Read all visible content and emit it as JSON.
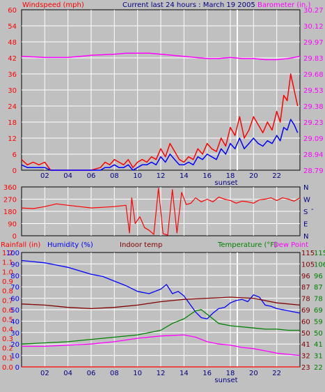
{
  "panels": {
    "wind": {
      "title_left": "Windspeed (mph)",
      "title_center": "Current last 24 hours : March 19 2005",
      "title_right": "Barometer (in.)",
      "left_ticks": [
        "0",
        "6",
        "12",
        "18",
        "24",
        "30",
        "36",
        "42",
        "48",
        "54",
        "60"
      ],
      "right_ticks": [
        "28.79",
        "28.94",
        "29.09",
        "29.23",
        "29.38",
        "29.53",
        "29.68",
        "29.83",
        "29.97",
        "30.12",
        "30.27"
      ],
      "x_ticks": [
        "02",
        "04",
        "06",
        "08",
        "10",
        "12",
        "14",
        "16",
        "18",
        "20",
        "22"
      ],
      "sunset_label": "sunset"
    },
    "direction": {
      "left_ticks": [
        "0",
        "90",
        "180",
        "270",
        "360"
      ],
      "right_labels": [
        "N",
        "E",
        "S",
        "W",
        "N"
      ],
      "dash": "-"
    },
    "temp": {
      "title_rain": "Rainfall (in)",
      "title_humidity": "Humidity (%)",
      "title_indoor": "Indoor temp",
      "title_temp": "Temperature (°F)",
      "title_dew": "Dew Point",
      "rain_ticks": [
        "0.0",
        "0.1",
        "0.2",
        "0.3",
        "0.4",
        "0.5",
        "0.6",
        "0.7",
        "0.8",
        "0.9",
        "1.0",
        "1.1",
        "1.2"
      ],
      "hum_ticks": [
        "0",
        "10",
        "20",
        "30",
        "40",
        "50",
        "60",
        "70",
        "80",
        "90",
        "100"
      ],
      "temp_ticks_a": [
        "23",
        "32",
        "41",
        "50",
        "60",
        "69",
        "78",
        "87",
        "96",
        "105",
        "115"
      ],
      "temp_ticks_b": [
        "22",
        "31",
        "41",
        "50",
        "59",
        "69",
        "78",
        "87",
        "96",
        "106",
        "115"
      ],
      "x_ticks": [
        "02",
        "04",
        "06",
        "08",
        "10",
        "12",
        "14",
        "16",
        "18",
        "20",
        "22"
      ],
      "sunset_label": "sunset"
    }
  },
  "colors": {
    "wind_gust": "#ff0000",
    "wind_avg": "#0000ff",
    "barometer": "#ff00ff",
    "direction": "#ff0000",
    "humidity": "#0000ff",
    "indoor": "#800000",
    "temperature": "#008000",
    "dewpoint": "#ff00ff",
    "rain": "#ff0000",
    "grid": "#ffffff",
    "bg": "#c0c0c0"
  },
  "chart_data": [
    {
      "type": "line",
      "x_label": "hour",
      "xlim": [
        0,
        24
      ],
      "ylim": [
        0,
        60
      ],
      "y2lim": [
        28.79,
        30.27
      ],
      "series": [
        {
          "axis": "left",
          "color_key": "wind_gust",
          "x": [
            0,
            0.5,
            1,
            1.5,
            2,
            2.5,
            3,
            4,
            5,
            6,
            6.8,
            7.2,
            7.6,
            8,
            8.4,
            8.8,
            9.2,
            9.6,
            10,
            10.4,
            10.8,
            11.2,
            11.6,
            12,
            12.4,
            12.8,
            13.2,
            13.6,
            14,
            14.4,
            14.8,
            15.2,
            15.6,
            16,
            16.4,
            16.8,
            17.2,
            17.6,
            18,
            18.4,
            18.8,
            19.2,
            19.6,
            20,
            20.4,
            20.8,
            21.2,
            21.6,
            22,
            22.3,
            22.6,
            22.9,
            23.2,
            23.5,
            23.8
          ],
          "y": [
            4,
            2,
            3,
            2,
            3,
            0,
            0,
            0,
            0,
            0,
            1,
            3,
            2,
            4,
            3,
            2,
            4,
            1,
            3,
            4,
            3,
            5,
            4,
            8,
            5,
            10,
            7,
            4,
            3,
            5,
            4,
            8,
            6,
            10,
            8,
            7,
            12,
            9,
            16,
            13,
            20,
            12,
            15,
            20,
            17,
            14,
            18,
            15,
            22,
            18,
            28,
            26,
            36,
            30,
            24
          ]
        },
        {
          "axis": "left",
          "color_key": "wind_avg",
          "x": [
            0,
            0.5,
            1,
            1.5,
            2,
            2.5,
            3,
            4,
            5,
            6,
            6.8,
            7.2,
            7.6,
            8,
            8.4,
            8.8,
            9.2,
            9.6,
            10,
            10.4,
            10.8,
            11.2,
            11.6,
            12,
            12.4,
            12.8,
            13.2,
            13.6,
            14,
            14.4,
            14.8,
            15.2,
            15.6,
            16,
            16.4,
            16.8,
            17.2,
            17.6,
            18,
            18.4,
            18.8,
            19.2,
            19.6,
            20,
            20.4,
            20.8,
            21.2,
            21.6,
            22,
            22.3,
            22.6,
            22.9,
            23.2,
            23.5,
            23.8
          ],
          "y": [
            2,
            1,
            1,
            1,
            1,
            0,
            0,
            0,
            0,
            0,
            0,
            1,
            1,
            2,
            1,
            1,
            2,
            0,
            1,
            2,
            2,
            3,
            2,
            5,
            3,
            6,
            4,
            2,
            2,
            3,
            2,
            5,
            4,
            6,
            5,
            4,
            8,
            6,
            10,
            8,
            12,
            8,
            10,
            12,
            10,
            9,
            11,
            10,
            13,
            11,
            16,
            15,
            19,
            17,
            14
          ]
        },
        {
          "axis": "right",
          "color_key": "barometer",
          "x": [
            0,
            2,
            4,
            6,
            8,
            9,
            10,
            11,
            12,
            13,
            14,
            15,
            16,
            17,
            18,
            19,
            20,
            21,
            22,
            23,
            24
          ],
          "y": [
            29.84,
            29.83,
            29.83,
            29.85,
            29.86,
            29.87,
            29.87,
            29.87,
            29.86,
            29.85,
            29.84,
            29.83,
            29.82,
            29.82,
            29.83,
            29.82,
            29.82,
            29.81,
            29.81,
            29.82,
            29.84
          ]
        }
      ]
    },
    {
      "type": "line",
      "x_label": "hour",
      "xlim": [
        0,
        24
      ],
      "ylim": [
        0,
        360
      ],
      "series": [
        {
          "color_key": "direction",
          "x": [
            0,
            1,
            2,
            3,
            4,
            5,
            6,
            7,
            8,
            9,
            9.3,
            9.5,
            9.8,
            10.2,
            10.6,
            11,
            11.4,
            11.8,
            12.2,
            12.6,
            13,
            13.4,
            13.8,
            14.2,
            14.6,
            15,
            15.5,
            16,
            16.5,
            17,
            17.5,
            18,
            18.5,
            19,
            19.5,
            20,
            20.5,
            21,
            21.5,
            22,
            22.5,
            23,
            23.5,
            24
          ],
          "y": [
            205,
            200,
            215,
            235,
            225,
            215,
            205,
            210,
            215,
            225,
            20,
            280,
            90,
            140,
            60,
            40,
            10,
            350,
            15,
            5,
            340,
            20,
            320,
            230,
            240,
            280,
            250,
            270,
            250,
            285,
            270,
            260,
            240,
            255,
            250,
            240,
            265,
            270,
            280,
            260,
            280,
            270,
            255,
            280
          ]
        }
      ]
    },
    {
      "type": "line",
      "x_label": "hour",
      "xlim": [
        0,
        24
      ],
      "ylim": [
        0,
        100
      ],
      "y_rain_lim": [
        0.0,
        1.2
      ],
      "y_temp_lim": [
        23,
        115
      ],
      "series": [
        {
          "axis": "humidity",
          "color_key": "humidity",
          "x": [
            0,
            1,
            2,
            3,
            4,
            5,
            6,
            7,
            8,
            9,
            10,
            11,
            12,
            12.5,
            13,
            13.5,
            14,
            14.5,
            15,
            15.5,
            16,
            16.5,
            17,
            17.5,
            18,
            18.5,
            19,
            19.5,
            20,
            20.5,
            21,
            21.5,
            22,
            23,
            24
          ],
          "y": [
            93,
            92,
            91,
            89,
            87,
            84,
            81,
            79,
            75,
            71,
            66,
            64,
            68,
            72,
            64,
            66,
            62,
            55,
            48,
            43,
            42,
            47,
            51,
            52,
            56,
            58,
            59,
            57,
            63,
            61,
            54,
            53,
            51,
            49,
            47
          ]
        },
        {
          "axis": "humidity",
          "color_key": "indoor",
          "x": [
            0,
            2,
            4,
            6,
            8,
            10,
            12,
            14,
            16,
            18,
            20,
            22,
            24
          ],
          "y": [
            55,
            54,
            52,
            51,
            52,
            54,
            57,
            59,
            60,
            61,
            60,
            56,
            54
          ]
        },
        {
          "axis": "humidity",
          "color_key": "temperature",
          "x": [
            0,
            2,
            4,
            6,
            8,
            10,
            12,
            13,
            14,
            15,
            15.5,
            16,
            17,
            18,
            19,
            20,
            21,
            22,
            23,
            24
          ],
          "y": [
            20,
            21,
            22,
            24,
            26,
            28,
            32,
            38,
            42,
            49,
            50,
            46,
            38,
            36,
            35,
            34,
            33,
            33,
            32,
            32
          ]
        },
        {
          "axis": "humidity",
          "color_key": "dewpoint",
          "x": [
            0,
            2,
            4,
            6,
            8,
            10,
            12,
            14,
            15,
            16,
            17,
            18,
            19,
            20,
            21,
            22,
            23,
            24
          ],
          "y": [
            18,
            18,
            19,
            20,
            22,
            25,
            27,
            28,
            26,
            22,
            20,
            19,
            17,
            16,
            14,
            12,
            11,
            10
          ]
        },
        {
          "axis": "rain",
          "color_key": "rain",
          "x": [
            0,
            24
          ],
          "y": [
            0.0,
            0.0
          ]
        }
      ]
    }
  ]
}
